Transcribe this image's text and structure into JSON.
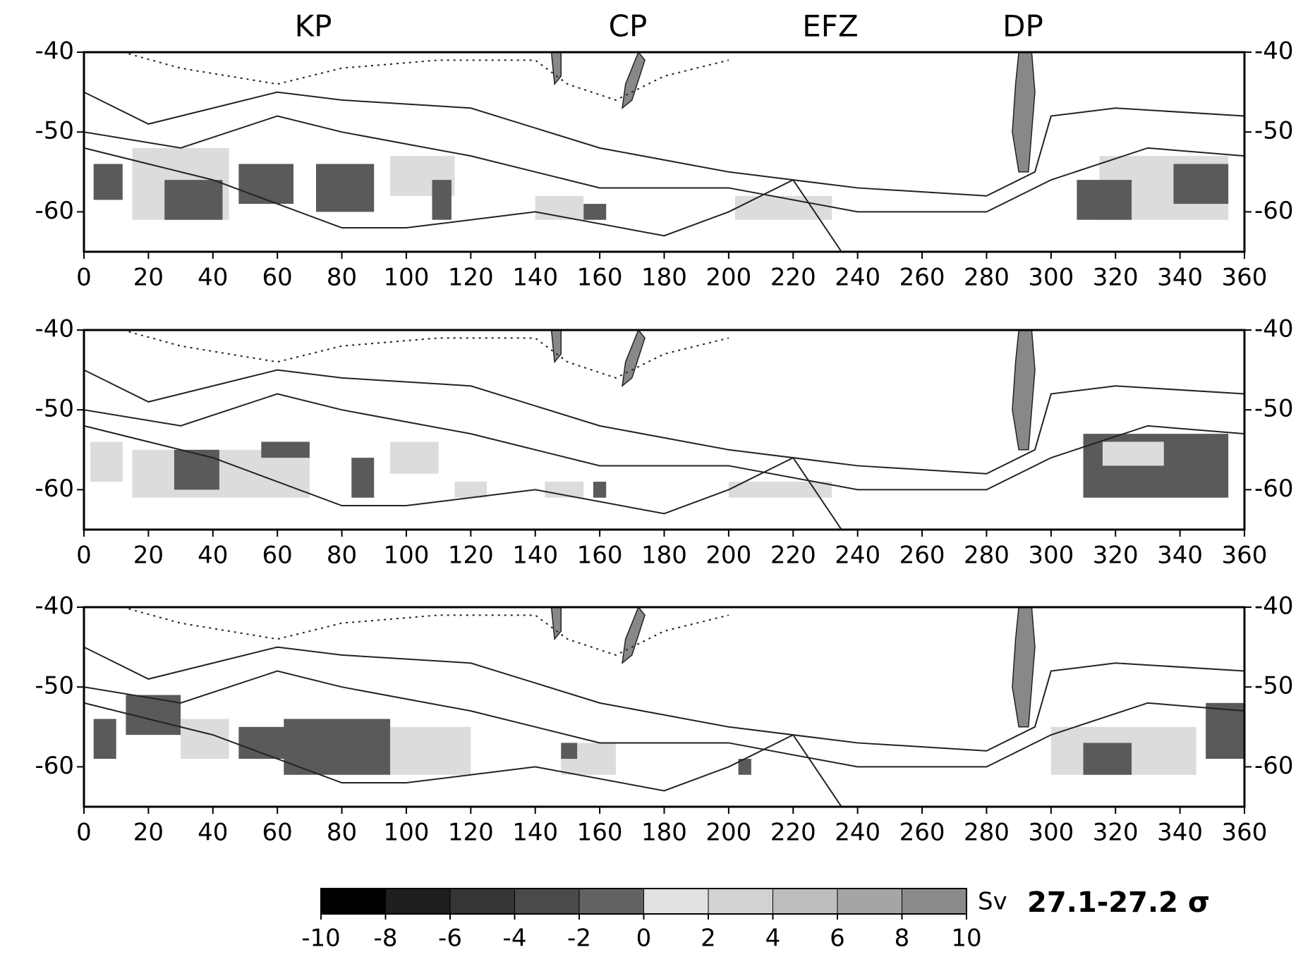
{
  "chart_data": {
    "type": "map",
    "annotations": [
      "KP",
      "CP",
      "EFZ",
      "DP"
    ],
    "panels": [
      {
        "xlim": [
          0,
          360
        ],
        "xticks": [
          0,
          20,
          40,
          60,
          80,
          100,
          120,
          140,
          160,
          180,
          200,
          220,
          240,
          260,
          280,
          300,
          320,
          340,
          360
        ],
        "ylim": [
          -65,
          -40
        ],
        "yticks": [
          -40,
          -50,
          -60
        ]
      },
      {
        "xlim": [
          0,
          360
        ],
        "xticks": [
          0,
          20,
          40,
          60,
          80,
          100,
          120,
          140,
          160,
          180,
          200,
          220,
          240,
          260,
          280,
          300,
          320,
          340,
          360
        ],
        "ylim": [
          -65,
          -40
        ],
        "yticks": [
          -40,
          -50,
          -60
        ]
      },
      {
        "xlim": [
          0,
          360
        ],
        "xticks": [
          0,
          20,
          40,
          60,
          80,
          100,
          120,
          140,
          160,
          180,
          200,
          220,
          240,
          260,
          280,
          300,
          320,
          340,
          360
        ],
        "ylim": [
          -65,
          -40
        ],
        "yticks": [
          -40,
          -50,
          -60
        ]
      }
    ],
    "colorbar": {
      "unit": "Sv",
      "label": "27.1-27.2 σ",
      "ticks": [
        -10,
        -8,
        -6,
        -4,
        -2,
        0,
        2,
        4,
        6,
        8,
        10
      ],
      "colors": [
        "#000000",
        "#1e1e1e",
        "#353535",
        "#4a4a4a",
        "#626262",
        "#e2e2e2",
        "#d2d2d2",
        "#bdbdbd",
        "#a5a5a5",
        "#8a8a8a"
      ]
    }
  }
}
